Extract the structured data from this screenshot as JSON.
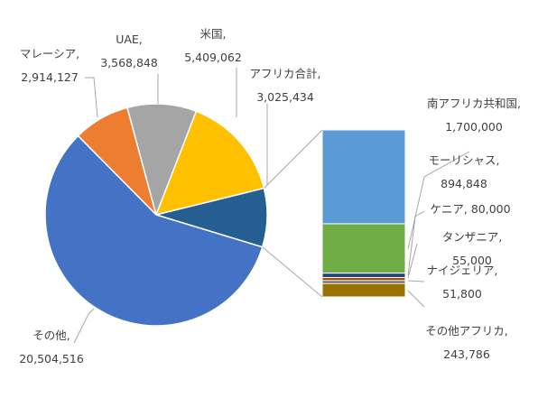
{
  "chart_data": {
    "type": "pie",
    "title": "",
    "slices": [
      {
        "label": "マレーシア",
        "value": 2914127,
        "display": "2,914,127",
        "color": "#ED7D31"
      },
      {
        "label": "UAE",
        "value": 3568848,
        "display": "3,568,848",
        "color": "#A5A5A5"
      },
      {
        "label": "米国",
        "value": 5409062,
        "display": "5,409,062",
        "color": "#FFC000"
      },
      {
        "label": "アフリカ合計",
        "value": 3025434,
        "display": "3,025,434",
        "color": "#255E91"
      },
      {
        "label": "その他",
        "value": 20504516,
        "display": "20,504,516",
        "color": "#4472C4"
      }
    ],
    "breakdown": {
      "of_slice": "アフリカ合計",
      "type": "stacked-bar",
      "items": [
        {
          "label": "南アフリカ共和国",
          "value": 1700000,
          "display": "1,700,000",
          "color": "#5B9BD5"
        },
        {
          "label": "モーリシャス",
          "value": 894848,
          "display": "894,848",
          "color": "#70AD47"
        },
        {
          "label": "ケニア",
          "value": 80000,
          "display": "80,000",
          "color": "#264478"
        },
        {
          "label": "タンザニア",
          "value": 55000,
          "display": "55,000",
          "color": "#9E480E"
        },
        {
          "label": "ナイジェリア",
          "value": 51800,
          "display": "51,800",
          "color": "#636363"
        },
        {
          "label": "その他アフリカ",
          "value": 243786,
          "display": "243,786",
          "color": "#997300"
        }
      ]
    }
  }
}
